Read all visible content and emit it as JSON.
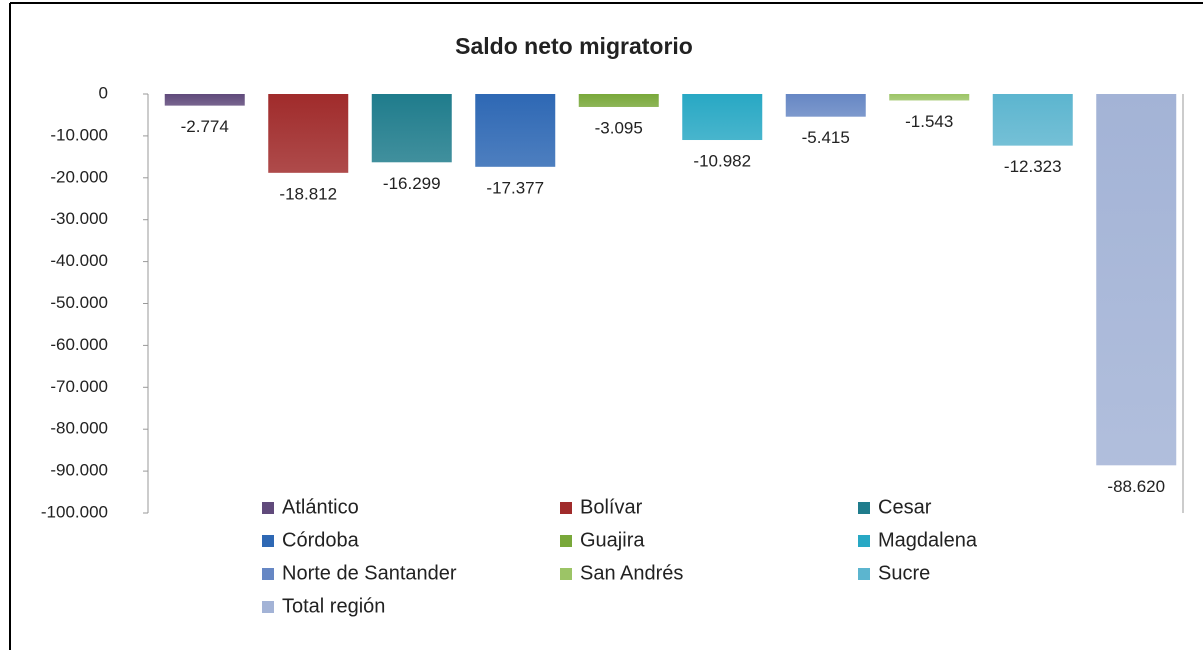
{
  "chart_data": {
    "type": "bar",
    "title": "Saldo neto migratorio",
    "series": [
      {
        "name": "Atlántico",
        "color": "#604a7b",
        "values": [
          -2774
        ],
        "value_labels": [
          "-2.774"
        ]
      },
      {
        "name": "Bolívar",
        "color": "#a02b2b",
        "values": [
          -18812
        ],
        "value_labels": [
          "-18.812"
        ]
      },
      {
        "name": "Cesar",
        "color": "#1f7c8c",
        "values": [
          -16299
        ],
        "value_labels": [
          "-16.299"
        ]
      },
      {
        "name": "Córdoba",
        "color": "#2e68b4",
        "values": [
          -17377
        ],
        "value_labels": [
          "-17.377"
        ]
      },
      {
        "name": "Guajira",
        "color": "#79a83a",
        "values": [
          -3095
        ],
        "value_labels": [
          "-3.095"
        ]
      },
      {
        "name": "Magdalena",
        "color": "#28a8c4",
        "values": [
          -10982
        ],
        "value_labels": [
          "-10.982"
        ]
      },
      {
        "name": "Norte de Santander",
        "color": "#6687c4",
        "values": [
          -5415
        ],
        "value_labels": [
          "-5.415"
        ]
      },
      {
        "name": "San Andrés",
        "color": "#9cc466",
        "values": [
          -1543
        ],
        "value_labels": [
          "-1.543"
        ]
      },
      {
        "name": "Sucre",
        "color": "#5cb5cf",
        "values": [
          -12323
        ],
        "value_labels": [
          "-12.323"
        ]
      },
      {
        "name": "Total región",
        "color": "#a3b3d6",
        "values": [
          -88620
        ],
        "value_labels": [
          "-88.620"
        ]
      }
    ],
    "ylim": [
      -100000,
      0
    ],
    "yticks": [
      0,
      {
        "value": -10000,
        "label": "-10.000"
      },
      {
        "value": -20000,
        "label": "-20.000"
      },
      {
        "value": -30000,
        "label": "-30.000"
      },
      {
        "value": -40000,
        "label": "-40.000"
      },
      {
        "value": -50000,
        "label": "-50.000"
      },
      {
        "value": -60000,
        "label": "-60.000"
      },
      {
        "value": -70000,
        "label": "-70.000"
      },
      {
        "value": -80000,
        "label": "-80.000"
      },
      {
        "value": -90000,
        "label": "-90.000"
      },
      {
        "value": -100000,
        "label": "-100.000"
      }
    ],
    "legend": "bottom"
  }
}
